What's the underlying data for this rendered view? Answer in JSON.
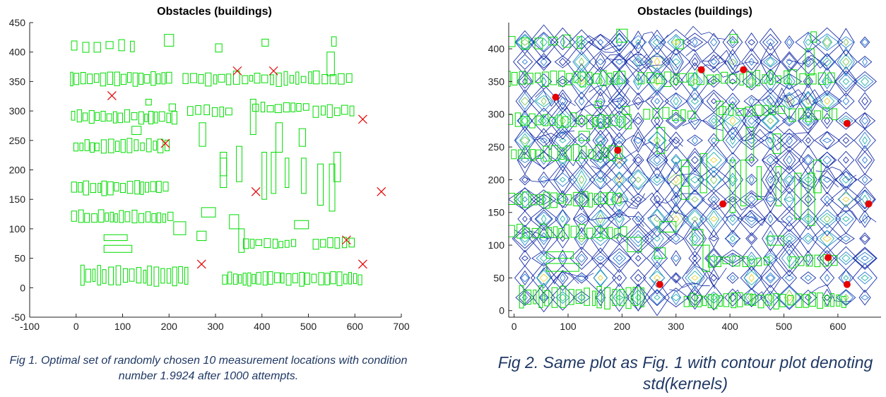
{
  "chart_data": [
    {
      "type": "scatter",
      "title": "Obstacles (buildings)",
      "xlim": [
        -100,
        700
      ],
      "ylim": [
        -50,
        450
      ],
      "xticks": [
        -100,
        0,
        100,
        200,
        300,
        400,
        500,
        600,
        700
      ],
      "yticks": [
        -50,
        0,
        50,
        100,
        150,
        200,
        250,
        300,
        350,
        400,
        450
      ],
      "grid": false,
      "series": [
        {
          "marker": "x",
          "color": "#e60000",
          "x": [
            77,
            192,
            347,
            425,
            387,
            617,
            657,
            582,
            617,
            270
          ],
          "y": [
            326,
            245,
            368,
            368,
            163,
            286,
            163,
            81,
            40,
            40
          ]
        }
      ],
      "obstacle_color": "#00dd00",
      "caption": "Fig 1. Optimal set of randomly chosen 10 measurement locations with condition number 1.9924 after 1000 attempts."
    },
    {
      "type": "scatter",
      "title": "Obstacles (buildings)",
      "xlim": [
        -10,
        680
      ],
      "ylim": [
        -10,
        440
      ],
      "xticks": [
        0,
        100,
        200,
        300,
        400,
        500,
        600
      ],
      "yticks": [
        0,
        50,
        100,
        150,
        200,
        250,
        300,
        350,
        400
      ],
      "grid": false,
      "series": [
        {
          "marker": "dot",
          "color": "#e60000",
          "x": [
            77,
            192,
            347,
            425,
            387,
            617,
            657,
            582,
            617,
            270
          ],
          "y": [
            326,
            245,
            368,
            368,
            163,
            286,
            163,
            81,
            40,
            40
          ]
        }
      ],
      "obstacle_color": "#00dd00",
      "contour_colors": [
        "#1a2fa8",
        "#2a7fd6",
        "#22b5a8",
        "#7ec85a",
        "#e8d23a"
      ],
      "caption": "Fig 2. Same plot as Fig. 1 with contour plot denoting std(kernels)"
    }
  ]
}
